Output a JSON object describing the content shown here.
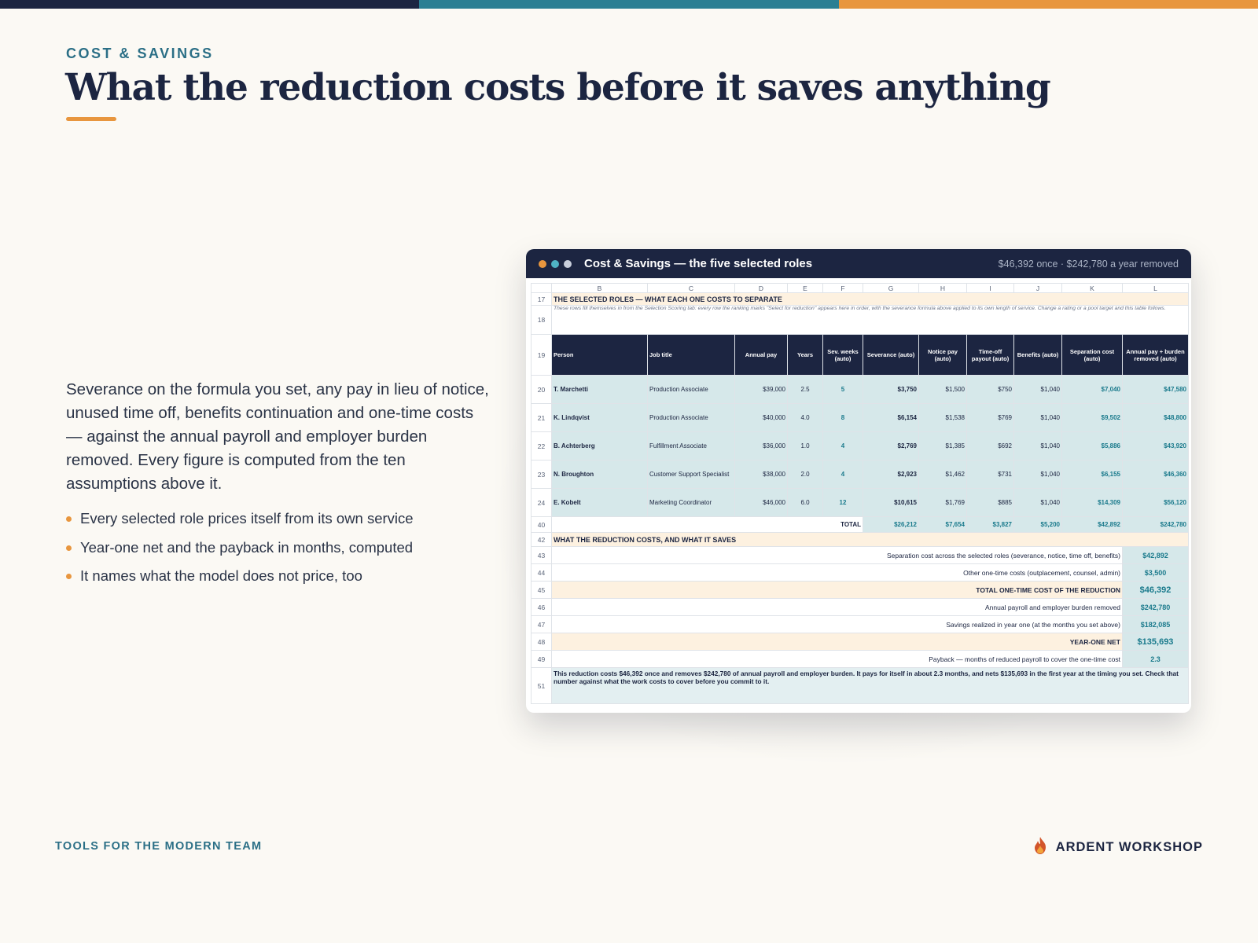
{
  "slide": {
    "eyebrow": "COST & SAVINGS",
    "title": "What the reduction costs before it saves anything",
    "lede": "Severance on the formula you set, any pay in lieu of notice, unused time off, benefits continuation and one-time costs — against the annual payroll and employer burden removed. Every figure is computed from the ten assumptions above it.",
    "bullets": [
      "Every selected role prices itself from its own service",
      "Year-one net and the payback in months, computed",
      "It names what the model does not price, too"
    ],
    "footer_left": "TOOLS FOR THE MODERN TEAM",
    "brand": "ARDENT WORKSHOP",
    "brand_icon": "flame-icon"
  },
  "colors": {
    "navy": "#1c2541",
    "teal": "#2b7f93",
    "orange": "#e8963e",
    "cell_teal": "#d6e8ea",
    "cell_peach": "#fdf1e0"
  },
  "window": {
    "title": "Cost & Savings — the five selected roles",
    "subtitle": "$46,392 once · $242,780 a year removed",
    "traffic_lights": [
      "#e8963e",
      "#4fb3c4",
      "#c9cfdc"
    ]
  },
  "sheet": {
    "columns": [
      "B",
      "C",
      "D",
      "E",
      "F",
      "G",
      "H",
      "I",
      "J",
      "K",
      "L"
    ],
    "section_title": {
      "row": "17",
      "text": "THE SELECTED ROLES — WHAT EACH ONE COSTS TO SEPARATE"
    },
    "note": {
      "row": "18",
      "text": "These rows fill themselves in from the Selection Scoring tab: every row the ranking marks \"Select for reduction\" appears here in order, with the severance formula above applied to its own length of service. Change a rating or a pool target and this table follows."
    },
    "header_row": "19",
    "headers": [
      "Person",
      "Job title",
      "Annual pay",
      "Years",
      "Sev. weeks (auto)",
      "Severance (auto)",
      "Notice pay (auto)",
      "Time-off payout (auto)",
      "Benefits (auto)",
      "Separation cost (auto)",
      "Annual pay + burden removed (auto)"
    ],
    "rows": [
      {
        "row": "20",
        "person": "T. Marchetti",
        "title": "Production Associate",
        "pay": "$39,000",
        "years": "2.5",
        "weeks": "5",
        "severance": "$3,750",
        "notice": "$1,500",
        "timeoff": "$750",
        "benefits": "$1,040",
        "separation": "$7,040",
        "removed": "$47,580"
      },
      {
        "row": "21",
        "person": "K. Lindqvist",
        "title": "Production Associate",
        "pay": "$40,000",
        "years": "4.0",
        "weeks": "8",
        "severance": "$6,154",
        "notice": "$1,538",
        "timeoff": "$769",
        "benefits": "$1,040",
        "separation": "$9,502",
        "removed": "$48,800"
      },
      {
        "row": "22",
        "person": "B. Achterberg",
        "title": "Fulfillment Associate",
        "pay": "$36,000",
        "years": "1.0",
        "weeks": "4",
        "severance": "$2,769",
        "notice": "$1,385",
        "timeoff": "$692",
        "benefits": "$1,040",
        "separation": "$5,886",
        "removed": "$43,920"
      },
      {
        "row": "23",
        "person": "N. Broughton",
        "title": "Customer Support Specialist",
        "pay": "$38,000",
        "years": "2.0",
        "weeks": "4",
        "severance": "$2,923",
        "notice": "$1,462",
        "timeoff": "$731",
        "benefits": "$1,040",
        "separation": "$6,155",
        "removed": "$46,360"
      },
      {
        "row": "24",
        "person": "E. Kobelt",
        "title": "Marketing Coordinator",
        "pay": "$46,000",
        "years": "6.0",
        "weeks": "12",
        "severance": "$10,615",
        "notice": "$1,769",
        "timeoff": "$885",
        "benefits": "$1,040",
        "separation": "$14,309",
        "removed": "$56,120"
      }
    ],
    "total": {
      "row": "40",
      "label": "TOTAL",
      "severance": "$26,212",
      "notice": "$7,654",
      "timeoff": "$3,827",
      "benefits": "$5,200",
      "separation": "$42,892",
      "removed": "$242,780"
    },
    "summary_title": {
      "row": "42",
      "text": "WHAT THE REDUCTION COSTS, AND WHAT IT SAVES"
    },
    "summary": [
      {
        "row": "43",
        "label": "Separation cost across the selected roles (severance, notice, time off, benefits)",
        "value": "$42,892"
      },
      {
        "row": "44",
        "label": "Other one-time costs (outplacement, counsel, admin)",
        "value": "$3,500"
      },
      {
        "row": "45",
        "label": "TOTAL ONE-TIME COST OF THE REDUCTION",
        "value": "$46,392"
      },
      {
        "row": "46",
        "label": "Annual payroll and employer burden removed",
        "value": "$242,780"
      },
      {
        "row": "47",
        "label": "Savings realized in year one (at the months you set above)",
        "value": "$182,085"
      },
      {
        "row": "48",
        "label": "YEAR-ONE NET",
        "value": "$135,693"
      },
      {
        "row": "49",
        "label": "Payback — months of reduced payroll to cover the one-time cost",
        "value": "2.3"
      }
    ],
    "conclusion": {
      "row": "51",
      "text": "This reduction costs $46,392 once and removes $242,780 of annual payroll and employer burden. It pays for itself in about 2.3 months, and nets $135,693 in the first year at the timing you set. Check that number against what the work costs to cover before you commit to it."
    }
  }
}
